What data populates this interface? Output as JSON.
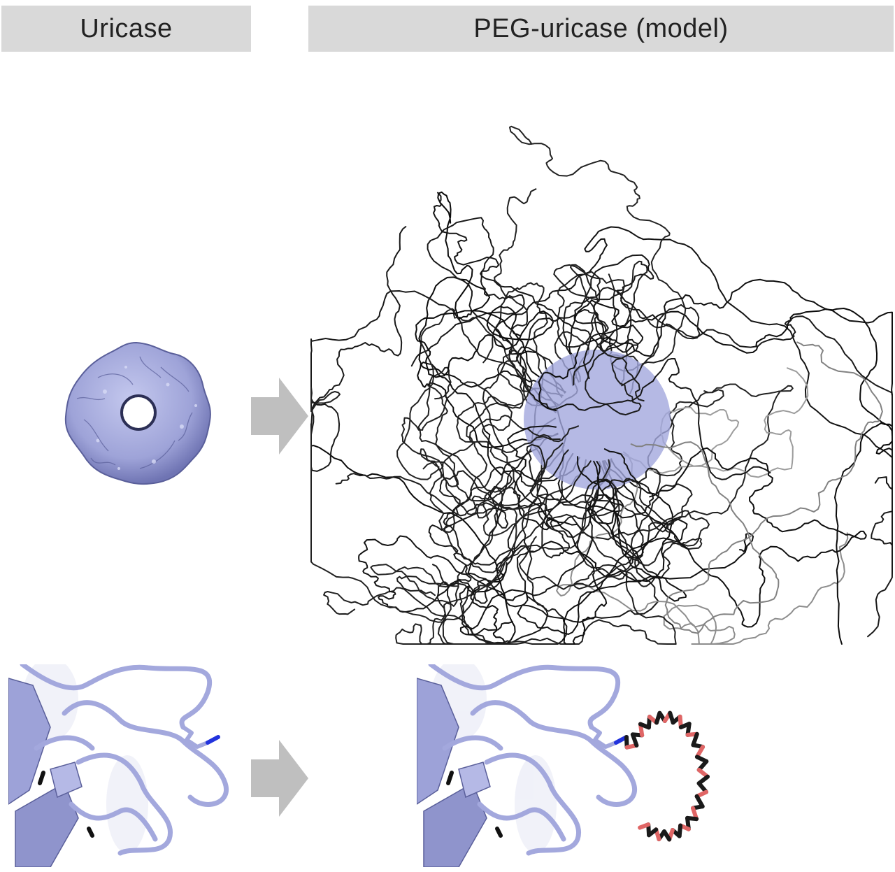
{
  "headers": {
    "left": "Uricase",
    "right": "PEG-uricase (model)"
  },
  "colors": {
    "header_bg": "#d9d9d9",
    "protein": "#a3a8dd",
    "protein_dark": "#6e73b5",
    "peg_chain": "#1a1a1a",
    "peg_oxygen": "#e06666",
    "nitrogen": "#2233dd",
    "arrow": "#bfbfbf"
  }
}
